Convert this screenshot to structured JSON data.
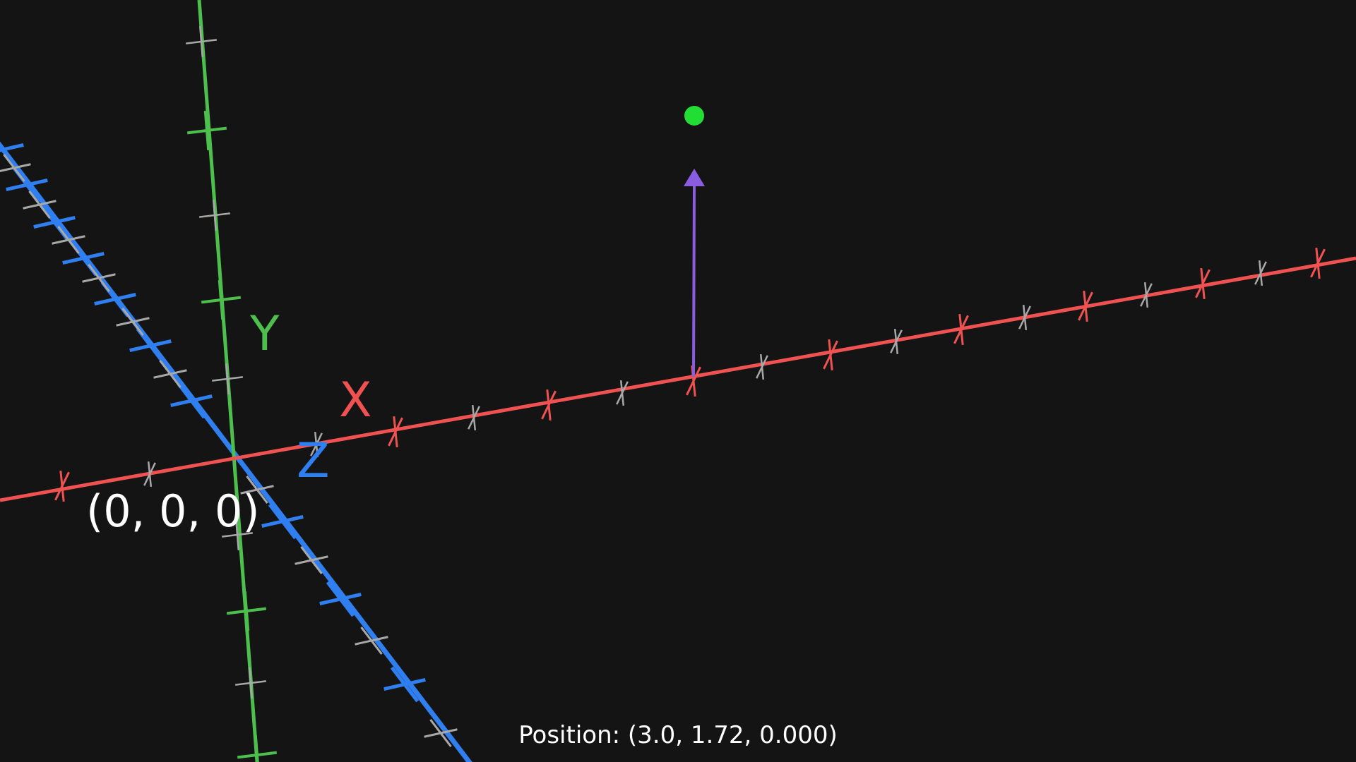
{
  "scene": {
    "background": "#141414",
    "axes": {
      "x": {
        "label": "X",
        "color": "#f05252"
      },
      "y": {
        "label": "Y",
        "color": "#4cbf4c"
      },
      "z": {
        "label": "Z",
        "color": "#2f7ff0"
      }
    },
    "minor_tick_color": "#a8a8a8",
    "origin_label": "(0, 0, 0)",
    "point": {
      "color": "#22dd33"
    },
    "vector": {
      "color": "#8a5ce0"
    }
  },
  "status": {
    "text": "Position: (3.0, 1.72, 0.000)"
  }
}
